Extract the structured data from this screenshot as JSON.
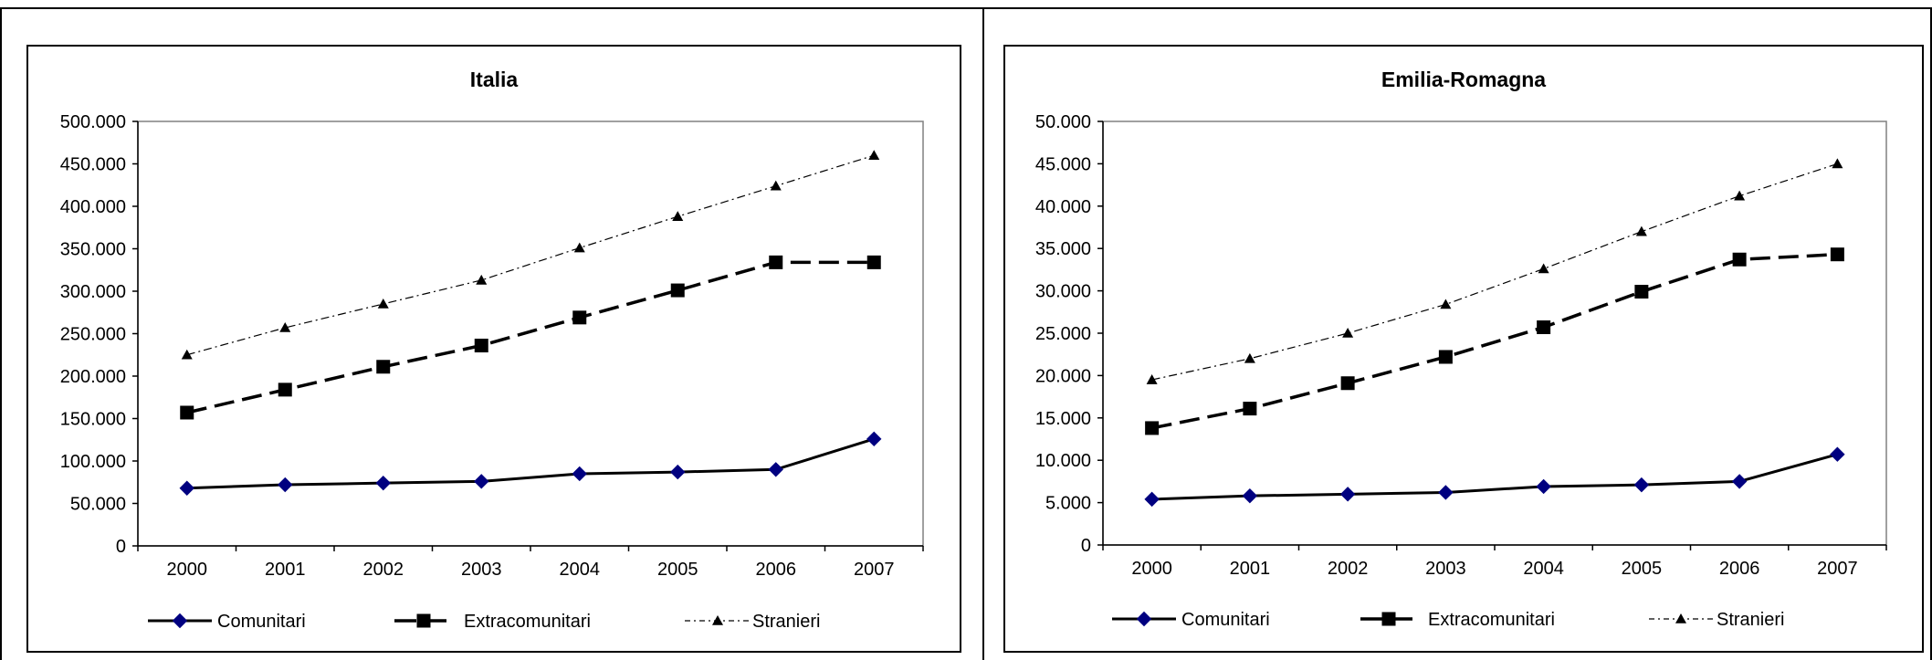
{
  "chart_data": [
    {
      "type": "line",
      "title": "Italia",
      "xlabel": "",
      "ylabel": "",
      "categories": [
        "2000",
        "2001",
        "2002",
        "2003",
        "2004",
        "2005",
        "2006",
        "2007"
      ],
      "ylim": [
        0,
        500000
      ],
      "ytick_labels": [
        "0",
        "50.000",
        "100.000",
        "150.000",
        "200.000",
        "250.000",
        "300.000",
        "350.000",
        "400.000",
        "450.000",
        "500.000"
      ],
      "grid": false,
      "legend_position": "bottom",
      "series": [
        {
          "name": "Comunitari",
          "values": [
            68000,
            72000,
            74000,
            76000,
            85000,
            87000,
            90000,
            126000
          ]
        },
        {
          "name": "Extracomunitari",
          "values": [
            157000,
            184000,
            211000,
            236000,
            269000,
            301000,
            334000,
            334000
          ]
        },
        {
          "name": "Stranieri",
          "values": [
            225000,
            257000,
            285000,
            313000,
            351000,
            388000,
            424000,
            460000
          ]
        }
      ]
    },
    {
      "type": "line",
      "title": "Emilia-Romagna",
      "xlabel": "",
      "ylabel": "",
      "categories": [
        "2000",
        "2001",
        "2002",
        "2003",
        "2004",
        "2005",
        "2006",
        "2007"
      ],
      "ylim": [
        0,
        50000
      ],
      "ytick_labels": [
        "0",
        "5.000",
        "10.000",
        "15.000",
        "20.000",
        "25.000",
        "30.000",
        "35.000",
        "40.000",
        "45.000",
        "50.000"
      ],
      "grid": false,
      "legend_position": "bottom",
      "series": [
        {
          "name": "Comunitari",
          "values": [
            5400,
            5800,
            6000,
            6200,
            6900,
            7100,
            7500,
            10700
          ]
        },
        {
          "name": "Extracomunitari",
          "values": [
            13800,
            16100,
            19100,
            22200,
            25700,
            29900,
            33700,
            34300
          ]
        },
        {
          "name": "Stranieri",
          "values": [
            19500,
            22000,
            25000,
            28400,
            32600,
            37000,
            41200,
            45000
          ]
        }
      ]
    }
  ],
  "style": {
    "comunitari_color": "#000080",
    "line_color": "#000000"
  }
}
